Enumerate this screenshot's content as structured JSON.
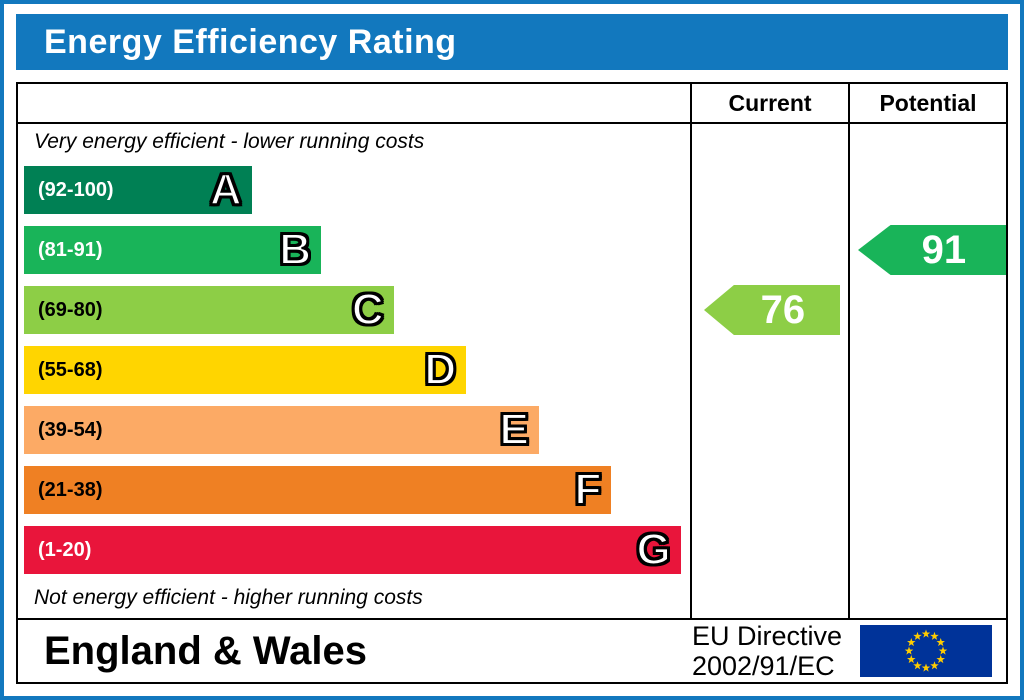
{
  "title": "Energy Efficiency Rating",
  "header": {
    "current": "Current",
    "potential": "Potential"
  },
  "notes": {
    "top": "Very energy efficient - lower running costs",
    "bottom": "Not energy efficient - higher running costs"
  },
  "bands": [
    {
      "letter": "A",
      "range": "(92-100)",
      "color": "#008054",
      "text_color": "#ffffff",
      "width_pct": 34.5
    },
    {
      "letter": "B",
      "range": "(81-91)",
      "color": "#19b459",
      "text_color": "#ffffff",
      "width_pct": 45
    },
    {
      "letter": "C",
      "range": "(69-80)",
      "color": "#8dce46",
      "text_color": "#000000",
      "width_pct": 56
    },
    {
      "letter": "D",
      "range": "(55-68)",
      "color": "#ffd500",
      "text_color": "#000000",
      "width_pct": 67
    },
    {
      "letter": "E",
      "range": "(39-54)",
      "color": "#fcaa65",
      "text_color": "#000000",
      "width_pct": 78
    },
    {
      "letter": "F",
      "range": "(21-38)",
      "color": "#ef8023",
      "text_color": "#000000",
      "width_pct": 89
    },
    {
      "letter": "G",
      "range": "(1-20)",
      "color": "#e9153b",
      "text_color": "#ffffff",
      "width_pct": 99.5
    }
  ],
  "current": {
    "value": "76",
    "band_index": 2
  },
  "potential": {
    "value": "91",
    "band_index": 1
  },
  "footer": {
    "region": "England & Wales",
    "directive_line1": "EU Directive",
    "directive_line2": "2002/91/EC"
  },
  "flag": {
    "background": "#003399",
    "star_color": "#ffcc00"
  },
  "accent_color": "#1278be",
  "chart_data": {
    "type": "bar",
    "title": "Energy Efficiency Rating",
    "categories": [
      "A",
      "B",
      "C",
      "D",
      "E",
      "F",
      "G"
    ],
    "ranges": [
      "92-100",
      "81-91",
      "69-80",
      "55-68",
      "39-54",
      "21-38",
      "1-20"
    ],
    "colors": [
      "#008054",
      "#19b459",
      "#8dce46",
      "#ffd500",
      "#fcaa65",
      "#ef8023",
      "#e9153b"
    ],
    "bar_relative_widths_pct": [
      34.5,
      45,
      56,
      67,
      78,
      89,
      99.5
    ],
    "annotations": [
      {
        "label": "Current",
        "value": 76,
        "band": "C",
        "color": "#8dce46"
      },
      {
        "label": "Potential",
        "value": 91,
        "band": "B",
        "color": "#19b459"
      }
    ],
    "top_label": "Very energy efficient - lower running costs",
    "bottom_label": "Not energy efficient - higher running costs",
    "footer": "England & Wales",
    "legend": "EU Directive 2002/91/EC"
  }
}
